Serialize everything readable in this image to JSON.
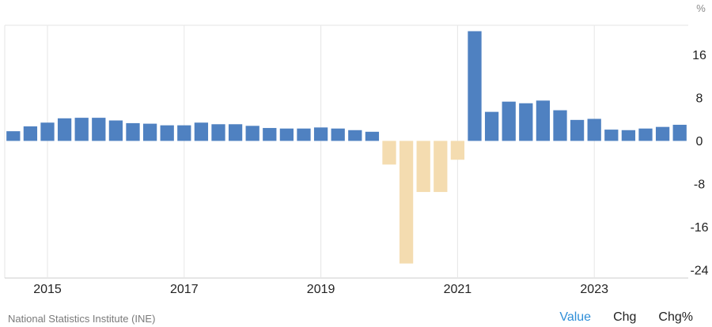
{
  "chart_data": {
    "type": "bar",
    "unit": "%",
    "x_tick_labels": [
      "2015",
      "2017",
      "2019",
      "2021",
      "2023"
    ],
    "y_ticks": [
      16,
      8,
      0,
      -8,
      -16,
      -24
    ],
    "ylim": [
      -25.5,
      21.5
    ],
    "grid": true,
    "colors": {
      "positive": "#4f81c1",
      "negative": "#f4dcb0",
      "grid": "#e6e6e6",
      "axis_text": "#222222",
      "unit_text": "#8a8a8a"
    },
    "categories": [
      "2014 Q3",
      "2014 Q4",
      "2015 Q1",
      "2015 Q2",
      "2015 Q3",
      "2015 Q4",
      "2016 Q1",
      "2016 Q2",
      "2016 Q3",
      "2016 Q4",
      "2017 Q1",
      "2017 Q2",
      "2017 Q3",
      "2017 Q4",
      "2018 Q1",
      "2018 Q2",
      "2018 Q3",
      "2018 Q4",
      "2019 Q1",
      "2019 Q2",
      "2019 Q3",
      "2019 Q4",
      "2020 Q1",
      "2020 Q2",
      "2020 Q3",
      "2020 Q4",
      "2021 Q1",
      "2021 Q2",
      "2021 Q3",
      "2021 Q4",
      "2022 Q1",
      "2022 Q2",
      "2022 Q3",
      "2022 Q4",
      "2023 Q1",
      "2023 Q2",
      "2023 Q3",
      "2023 Q4",
      "2024 Q1",
      "2024 Q2"
    ],
    "values": [
      1.8,
      2.7,
      3.4,
      4.2,
      4.3,
      4.3,
      3.8,
      3.3,
      3.2,
      2.9,
      2.9,
      3.4,
      3.1,
      3.1,
      2.8,
      2.4,
      2.3,
      2.3,
      2.5,
      2.3,
      2.0,
      1.7,
      -4.4,
      -22.8,
      -9.5,
      -9.5,
      -3.5,
      20.4,
      5.4,
      7.3,
      7.0,
      7.5,
      5.7,
      3.9,
      4.1,
      2.1,
      2.0,
      2.3,
      2.6,
      3.0
    ]
  },
  "footer": {
    "source": "National Statistics Institute (INE)",
    "tabs": {
      "value": "Value",
      "chg": "Chg",
      "chg_pct": "Chg%"
    }
  }
}
